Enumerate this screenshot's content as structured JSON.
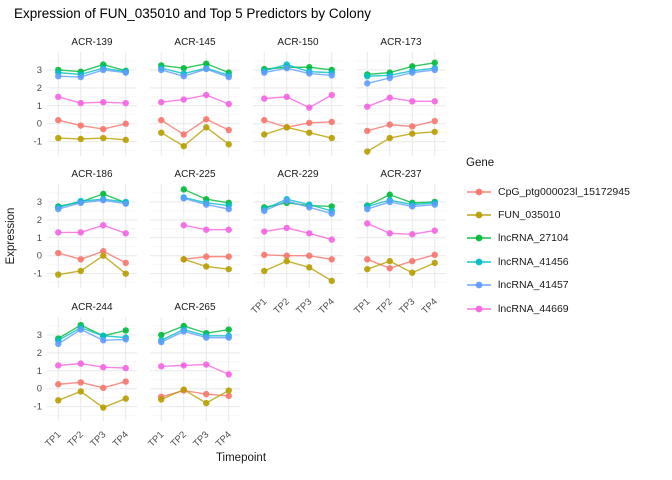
{
  "title": "Expression of FUN_035010 and Top 5 Predictors by Colony",
  "axes": {
    "x": {
      "title": "Timepoint",
      "ticks": [
        "TP1",
        "TP2",
        "TP3",
        "TP4"
      ]
    },
    "y": {
      "title": "Expression",
      "ticks": [
        3,
        2,
        1,
        0,
        -1
      ]
    }
  },
  "legend": {
    "title": "Gene",
    "entries": [
      {
        "label": "CpG_ptg000023l_15172945",
        "color": "#F8766D"
      },
      {
        "label": "FUN_035010",
        "color": "#B79F00"
      },
      {
        "label": "lncRNA_27104",
        "color": "#00BA38"
      },
      {
        "label": "lncRNA_41456",
        "color": "#00BFC4"
      },
      {
        "label": "lncRNA_41457",
        "color": "#619CFF"
      },
      {
        "label": "lncRNA_44669",
        "color": "#F564E3"
      }
    ]
  },
  "chart_data": {
    "type": "line",
    "title": "Expression of FUN_035010 and Top 5 Predictors by Colony",
    "xlabel": "Timepoint",
    "ylabel": "Expression",
    "x_categories": [
      "TP1",
      "TP2",
      "TP3",
      "TP4"
    ],
    "ylim": [
      -1.8,
      4.0
    ],
    "y_major_gridlines": [
      -1,
      0,
      1,
      2,
      3
    ],
    "y_minor_gridlines": [
      -1.5,
      -0.5,
      0.5,
      1.5,
      2.5,
      3.5
    ],
    "grid": "on",
    "legend_position": "right",
    "genes": [
      "CpG_ptg000023l_15172945",
      "FUN_035010",
      "lncRNA_27104",
      "lncRNA_41456",
      "lncRNA_41457",
      "lncRNA_44669"
    ],
    "facets": [
      {
        "colony": "ACR-139",
        "values": [
          [
            0.2,
            -0.1,
            -0.3,
            0.0
          ],
          [
            -0.8,
            -0.85,
            -0.8,
            -0.9
          ],
          [
            3.0,
            2.9,
            3.3,
            2.95
          ],
          [
            2.85,
            2.75,
            3.1,
            2.9
          ],
          [
            2.65,
            2.6,
            3.0,
            2.85
          ],
          [
            1.5,
            1.15,
            1.2,
            1.15
          ]
        ]
      },
      {
        "colony": "ACR-145",
        "values": [
          [
            0.2,
            -0.6,
            0.25,
            -0.35
          ],
          [
            -0.5,
            -1.25,
            -0.2,
            -1.15
          ],
          [
            3.25,
            3.1,
            3.35,
            2.85
          ],
          [
            3.1,
            2.8,
            3.1,
            2.7
          ],
          [
            3.0,
            2.65,
            3.05,
            2.6
          ],
          [
            1.2,
            1.35,
            1.6,
            1.1
          ]
        ]
      },
      {
        "colony": "ACR-150",
        "values": [
          [
            0.2,
            -0.2,
            0.05,
            0.1
          ],
          [
            -0.6,
            -0.2,
            -0.5,
            -0.8
          ],
          [
            3.05,
            3.15,
            3.15,
            3.0
          ],
          [
            2.95,
            3.3,
            2.9,
            2.85
          ],
          [
            2.85,
            3.1,
            2.8,
            2.7
          ],
          [
            1.4,
            1.5,
            0.9,
            1.6
          ]
        ]
      },
      {
        "colony": "ACR-173",
        "values": [
          [
            -0.4,
            -0.05,
            -0.15,
            0.15
          ],
          [
            -1.55,
            -0.8,
            -0.55,
            -0.45
          ],
          [
            2.75,
            2.85,
            3.2,
            3.4
          ],
          [
            2.65,
            2.7,
            2.95,
            3.1
          ],
          [
            2.25,
            2.55,
            2.85,
            3.0
          ],
          [
            0.95,
            1.45,
            1.25,
            1.25
          ]
        ]
      },
      {
        "colony": "ACR-186",
        "values": [
          [
            0.15,
            -0.2,
            0.25,
            -0.4
          ],
          [
            -1.05,
            -0.85,
            0.0,
            -1.0
          ],
          [
            2.75,
            3.0,
            3.45,
            2.95
          ],
          [
            2.7,
            3.05,
            3.15,
            3.0
          ],
          [
            2.6,
            2.95,
            3.1,
            2.9
          ],
          [
            1.3,
            1.3,
            1.7,
            1.25
          ]
        ]
      },
      {
        "colony": "ACR-225",
        "values": [
          [
            null,
            -0.2,
            -0.05,
            -0.05
          ],
          [
            null,
            -0.2,
            -0.6,
            -0.75
          ],
          [
            null,
            3.7,
            3.15,
            2.95
          ],
          [
            null,
            3.25,
            2.95,
            2.8
          ],
          [
            null,
            3.2,
            2.85,
            2.6
          ],
          [
            null,
            1.7,
            1.45,
            1.45
          ]
        ]
      },
      {
        "colony": "ACR-229",
        "values": [
          [
            0.05,
            0.0,
            0.0,
            -0.2
          ],
          [
            -0.85,
            -0.3,
            -0.65,
            -1.4
          ],
          [
            2.7,
            2.95,
            2.8,
            2.75
          ],
          [
            2.6,
            3.15,
            2.85,
            2.5
          ],
          [
            2.5,
            3.05,
            2.7,
            2.35
          ],
          [
            1.35,
            1.55,
            1.25,
            0.9
          ]
        ]
      },
      {
        "colony": "ACR-237",
        "values": [
          [
            -0.2,
            -0.7,
            -0.3,
            0.05
          ],
          [
            -0.75,
            -0.3,
            -0.95,
            -0.4
          ],
          [
            2.8,
            3.4,
            2.95,
            3.0
          ],
          [
            2.75,
            3.1,
            2.85,
            2.95
          ],
          [
            2.6,
            3.0,
            2.75,
            2.85
          ],
          [
            1.8,
            1.25,
            1.2,
            1.4
          ]
        ]
      },
      {
        "colony": "ACR-244",
        "values": [
          [
            0.25,
            0.35,
            0.05,
            0.4
          ],
          [
            -0.65,
            -0.15,
            -1.05,
            -0.55
          ],
          [
            2.8,
            3.55,
            2.95,
            3.25
          ],
          [
            2.7,
            3.4,
            2.95,
            2.85
          ],
          [
            2.5,
            3.3,
            2.7,
            2.75
          ],
          [
            1.3,
            1.4,
            1.2,
            1.15
          ]
        ]
      },
      {
        "colony": "ACR-265",
        "values": [
          [
            -0.45,
            -0.1,
            -0.3,
            -0.4
          ],
          [
            -0.6,
            -0.05,
            -0.8,
            -0.1
          ],
          [
            3.0,
            3.5,
            3.1,
            3.3
          ],
          [
            2.7,
            3.3,
            2.95,
            2.95
          ],
          [
            2.6,
            3.2,
            2.85,
            2.85
          ],
          [
            1.25,
            1.3,
            1.35,
            0.8
          ]
        ]
      }
    ]
  }
}
